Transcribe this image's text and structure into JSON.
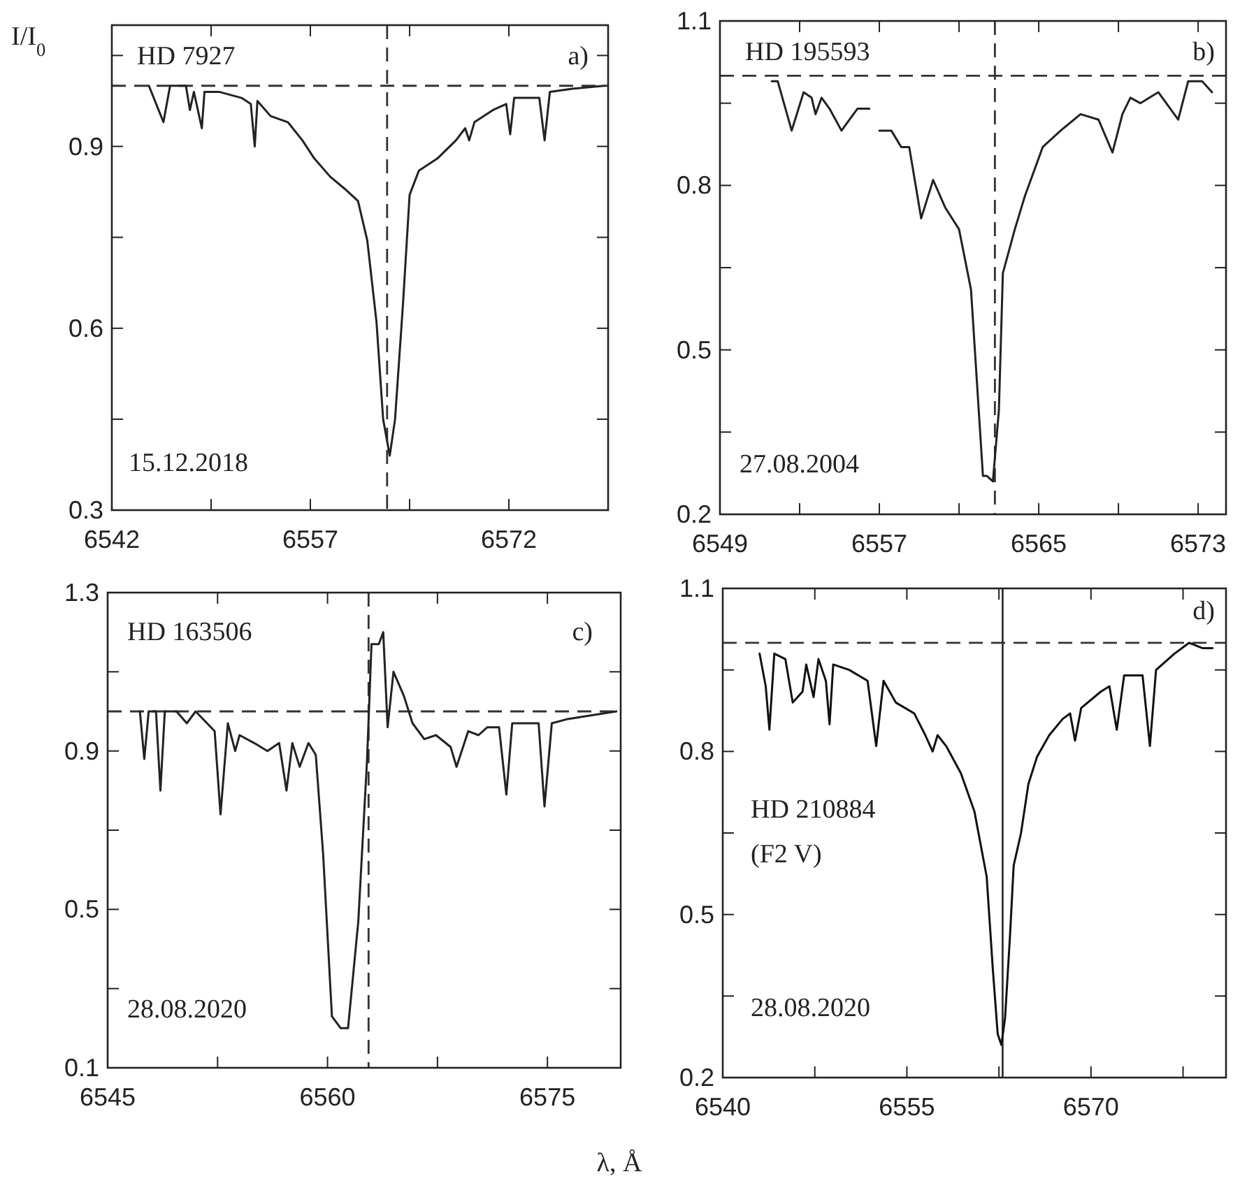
{
  "chart_data": [
    {
      "type": "line",
      "ylabel": "I/I$_{0}$",
      "xlim": [
        6542,
        6579.5
      ],
      "xticks": [
        6542,
        {
          "value": 6549.5,
          "label": null
        },
        6557,
        {
          "value": 6564.5,
          "label": null
        },
        6572,
        {
          "value": 6579.5,
          "label": null
        }
      ],
      "ylim": [
        0.3,
        1.1
      ],
      "yticks": [
        0.3,
        {
          "value": 0.45,
          "label": null
        },
        0.6,
        {
          "value": 0.75,
          "label": null
        },
        0.9,
        {
          "value": 1.05,
          "label": null
        }
      ],
      "annotations": [
        "HD 7927",
        "a)",
        "15.12.2018"
      ],
      "ref_lines": [
        {
          "axis": "y",
          "value": 1.0,
          "line_style": "dashed"
        },
        {
          "axis": "x",
          "value": 6562.8,
          "line_style": "dashed"
        }
      ],
      "series": [
        {
          "type": "line",
          "color": "#222222",
          "x": [
            6544.8,
            6545.9,
            6546.4,
            6547.6,
            6547.9,
            6548.2,
            6548.8,
            6549.0,
            6550.1,
            6551.8,
            6552.5,
            6552.8,
            6553.0,
            6554.0,
            6555.3,
            6556.4,
            6557.3,
            6558.5,
            6559.6,
            6560.6,
            6561.3,
            6562.0,
            6562.5,
            6563.0,
            6563.4,
            6564.0,
            6564.5,
            6565.2,
            6566.6,
            6568.0,
            6568.7,
            6569.0,
            6569.4,
            6570.8,
            6571.8,
            6572.1,
            6572.4,
            6574.3,
            6574.7,
            6575.1,
            6576.8,
            6579.2
          ],
          "values": [
            1.0,
            0.94,
            1.0,
            1.0,
            0.96,
            0.99,
            0.93,
            0.99,
            0.99,
            0.98,
            0.97,
            0.9,
            0.975,
            0.95,
            0.94,
            0.91,
            0.88,
            0.85,
            0.83,
            0.81,
            0.745,
            0.61,
            0.45,
            0.39,
            0.45,
            0.64,
            0.82,
            0.86,
            0.88,
            0.91,
            0.93,
            0.91,
            0.94,
            0.96,
            0.97,
            0.92,
            0.98,
            0.98,
            0.91,
            0.99,
            0.995,
            1.0
          ]
        }
      ]
    },
    {
      "type": "line",
      "xlim": [
        6549,
        6574.4
      ],
      "xticks": [
        6549,
        {
          "value": 6553,
          "label": null
        },
        6557,
        {
          "value": 6561,
          "label": null
        },
        6565,
        {
          "value": 6569,
          "label": null
        },
        6573
      ],
      "ylim": [
        0.2,
        1.1
      ],
      "yticks": [
        0.2,
        {
          "value": 0.35,
          "label": null
        },
        0.5,
        {
          "value": 0.65,
          "label": null
        },
        0.8,
        {
          "value": 0.95,
          "label": null
        },
        1.1
      ],
      "annotations": [
        "HD 195593",
        "b)",
        "27.08.2004"
      ],
      "ref_lines": [
        {
          "axis": "y",
          "value": 1.0,
          "line_style": "dashed"
        },
        {
          "axis": "x",
          "value": 6562.8,
          "line_style": "dashed"
        }
      ],
      "series": [
        {
          "type": "line",
          "color": "#222222",
          "x": [
            6551.6,
            6551.9,
            6552.6,
            6553.2,
            6553.6,
            6553.8,
            6554.1,
            6554.5,
            6555.1,
            6555.9,
            6556.5,
            6556.8,
            6557.0,
            6557.6,
            6558.1,
            6558.5,
            6559.1,
            6559.7,
            6560.3,
            6561.0,
            6561.6,
            6562.2,
            6562.4,
            6562.7,
            6563.0,
            6563.2,
            6563.8,
            6564.3,
            6565.2,
            6566.1,
            6567.1,
            6568.0,
            6568.7,
            6569.2,
            6569.6,
            6570.1,
            6571.0,
            6572.0,
            6572.5,
            6573.2,
            6573.7
          ],
          "values": [
            0.99,
            0.99,
            0.9,
            0.97,
            0.96,
            0.93,
            0.96,
            0.94,
            0.9,
            0.94,
            0.94,
            null,
            0.9,
            0.9,
            0.87,
            0.87,
            0.74,
            0.81,
            0.76,
            0.72,
            0.61,
            0.27,
            0.27,
            0.26,
            0.39,
            0.64,
            0.72,
            0.78,
            0.87,
            0.9,
            0.93,
            0.92,
            0.86,
            0.93,
            0.96,
            0.95,
            0.97,
            0.92,
            0.99,
            0.99,
            0.97
          ]
        }
      ]
    },
    {
      "type": "line",
      "xlabel": "λ, Å",
      "xlim": [
        6545,
        6580
      ],
      "xticks": [
        6545,
        {
          "value": 6552.5,
          "label": null
        },
        6560,
        {
          "value": 6567.5,
          "label": null
        },
        6575
      ],
      "ylim": [
        0.1,
        1.3
      ],
      "yticks": [
        0.1,
        {
          "value": 0.3,
          "label": null
        },
        0.5,
        {
          "value": 0.7,
          "label": null
        },
        0.9,
        {
          "value": 1.1,
          "label": null
        },
        1.3
      ],
      "annotations": [
        "HD 163506",
        "c)",
        "28.08.2020"
      ],
      "ref_lines": [
        {
          "axis": "y",
          "value": 1.0,
          "line_style": "dashed"
        },
        {
          "axis": "x",
          "value": 6562.8,
          "line_style": "dashed"
        }
      ],
      "series": [
        {
          "type": "line",
          "color": "#222222",
          "x": [
            6547.2,
            6547.5,
            6547.8,
            6548.3,
            6548.6,
            6548.9,
            6549.7,
            6550.4,
            6551.0,
            6552.3,
            6552.7,
            6553.2,
            6553.7,
            6554.0,
            6555.0,
            6555.9,
            6556.7,
            6557.2,
            6557.6,
            6558.1,
            6558.7,
            6559.2,
            6559.7,
            6560.3,
            6560.9,
            6561.4,
            6562.1,
            6562.7,
            6563.0,
            6563.5,
            6563.8,
            6564.1,
            6564.5,
            6565.2,
            6565.8,
            6566.6,
            6567.4,
            6568.4,
            6568.8,
            6569.6,
            6570.3,
            6570.9,
            6571.7,
            6572.2,
            6572.6,
            6574.4,
            6574.8,
            6575.3,
            6576.3,
            6579.7
          ],
          "values": [
            1.0,
            0.88,
            1.0,
            1.0,
            0.8,
            1.0,
            1.0,
            0.97,
            1.0,
            0.95,
            0.74,
            0.97,
            0.9,
            0.94,
            0.92,
            0.9,
            0.92,
            0.8,
            0.92,
            0.86,
            0.92,
            0.89,
            0.64,
            0.23,
            0.2,
            0.2,
            0.47,
            0.88,
            1.17,
            1.17,
            1.2,
            0.96,
            1.1,
            1.04,
            0.97,
            0.93,
            0.94,
            0.91,
            0.86,
            0.95,
            0.94,
            0.96,
            0.96,
            0.79,
            0.97,
            0.97,
            0.76,
            0.97,
            0.98,
            1.0
          ]
        }
      ]
    },
    {
      "type": "line",
      "xlim": [
        6540,
        6581
      ],
      "xticks": [
        6540,
        {
          "value": 6547.5,
          "label": null
        },
        6555,
        {
          "value": 6562.5,
          "label": null
        },
        6570,
        {
          "value": 6577.5,
          "label": null
        }
      ],
      "ylim": [
        0.2,
        1.1
      ],
      "yticks": [
        0.2,
        {
          "value": 0.35,
          "label": null
        },
        0.5,
        {
          "value": 0.65,
          "label": null
        },
        0.8,
        {
          "value": 0.95,
          "label": null
        },
        1.1
      ],
      "annotations": [
        "d)",
        "HD 210884",
        "(F2 V)",
        "28.08.2020"
      ],
      "ref_lines": [
        {
          "axis": "y",
          "value": 1.0,
          "line_style": "dashed"
        },
        {
          "axis": "x",
          "value": 6562.8,
          "line_style": "solid"
        }
      ],
      "series": [
        {
          "type": "line",
          "color": "#111111",
          "x": [
            6543.0,
            6543.5,
            6543.8,
            6544.2,
            6545.1,
            6545.7,
            6546.5,
            6546.8,
            6547.4,
            6547.8,
            6548.4,
            6548.7,
            6549.0,
            6550.3,
            6551.8,
            6552.5,
            6553.1,
            6554.1,
            6555.6,
            6556.5,
            6557.1,
            6557.5,
            6558.2,
            6559.4,
            6560.5,
            6561.5,
            6562.0,
            6562.4,
            6562.7,
            6563.0,
            6563.4,
            6563.7,
            6564.3,
            6564.9,
            6565.6,
            6566.6,
            6567.7,
            6568.3,
            6568.7,
            6569.2,
            6570.8,
            6571.5,
            6572.1,
            6572.7,
            6574.2,
            6574.8,
            6575.3,
            6576.8,
            6578.0,
            6579.1,
            6579.9
          ],
          "values": [
            0.98,
            0.92,
            0.84,
            0.98,
            0.97,
            0.89,
            0.91,
            0.96,
            0.9,
            0.97,
            0.93,
            0.85,
            0.96,
            0.95,
            0.93,
            0.81,
            0.93,
            0.89,
            0.87,
            0.83,
            0.8,
            0.83,
            0.81,
            0.76,
            0.69,
            0.57,
            0.4,
            0.28,
            0.26,
            0.31,
            0.46,
            0.59,
            0.65,
            0.74,
            0.79,
            0.83,
            0.86,
            0.87,
            0.82,
            0.88,
            0.91,
            0.92,
            0.84,
            0.94,
            0.94,
            0.81,
            0.95,
            0.98,
            1.0,
            0.99,
            0.99
          ]
        }
      ]
    }
  ]
}
